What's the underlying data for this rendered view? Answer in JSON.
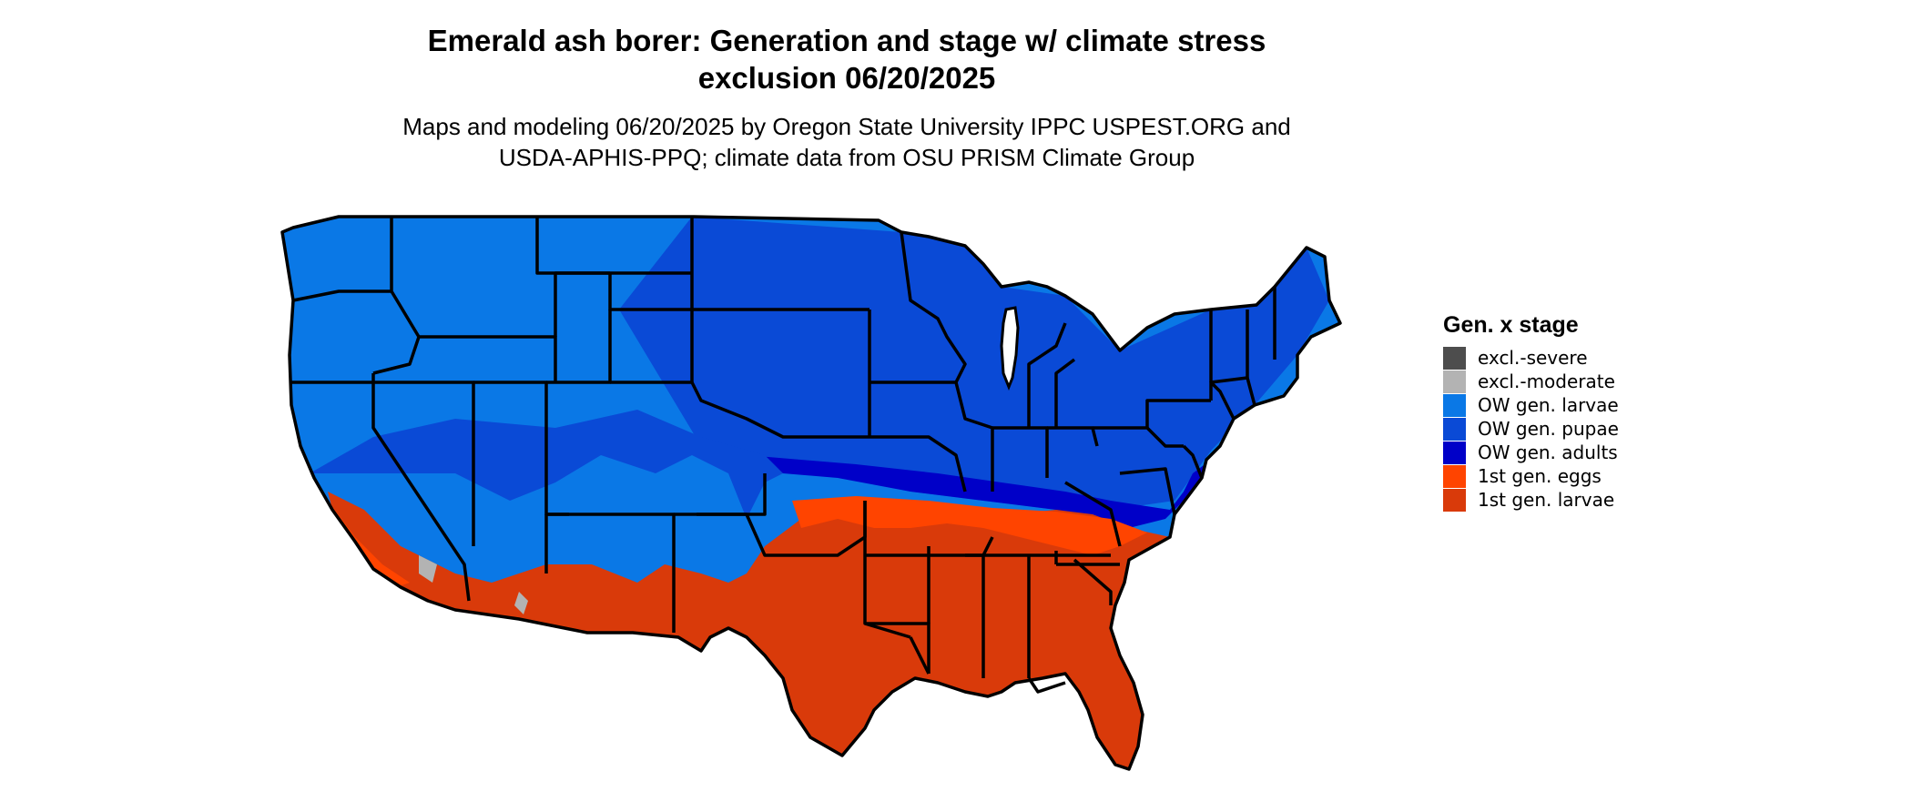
{
  "title": {
    "line1": "Emerald ash borer: Generation and stage w/ climate stress",
    "line2": "exclusion 06/20/2025"
  },
  "subtitle": {
    "line1": "Maps and modeling 06/20/2025 by Oregon State University IPPC USPEST.ORG and",
    "line2": "USDA-APHIS-PPQ; climate data from OSU PRISM Climate Group"
  },
  "legend": {
    "title": "Gen. x stage",
    "items": [
      {
        "label": "excl.-severe",
        "color": "#4d4d4d"
      },
      {
        "label": "excl.-moderate",
        "color": "#b3b3b3"
      },
      {
        "label": "OW gen. larvae",
        "color": "#0a78e6"
      },
      {
        "label": "OW gen. pupae",
        "color": "#0a4ad6"
      },
      {
        "label": "OW gen. adults",
        "color": "#0000c8"
      },
      {
        "label": "1st gen. eggs",
        "color": "#ff4400"
      },
      {
        "label": "1st gen. larvae",
        "color": "#d93a0a"
      }
    ]
  }
}
